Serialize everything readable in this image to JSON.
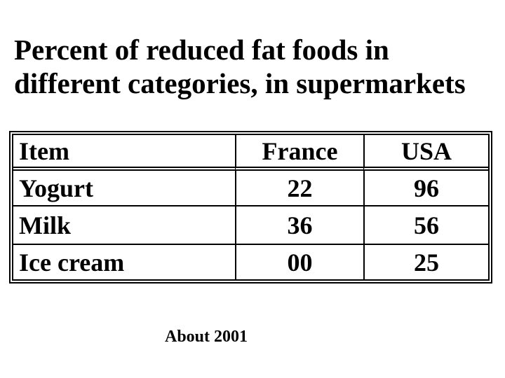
{
  "slide": {
    "title": {
      "line1": "Percent of reduced fat foods in",
      "line2": "different categories, in supermarkets"
    },
    "table": {
      "headers": [
        "Item",
        "France",
        "USA"
      ],
      "rows": [
        {
          "item": "Yogurt",
          "france": "22",
          "usa": "96"
        },
        {
          "item": "Milk",
          "france": "36",
          "usa": "56"
        },
        {
          "item": "Ice cream",
          "france": "00",
          "usa": "25"
        }
      ]
    },
    "footnote": "About 2001",
    "colors": {
      "background": "#ffffff",
      "text": "#000000",
      "table_border": "#000000"
    }
  },
  "chart_data": {
    "type": "table",
    "title": "Percent of reduced fat foods in different categories, in supermarkets",
    "categories": [
      "Yogurt",
      "Milk",
      "Ice cream"
    ],
    "series": [
      {
        "name": "France",
        "values": [
          22,
          36,
          0
        ]
      },
      {
        "name": "USA",
        "values": [
          96,
          56,
          25
        ]
      }
    ],
    "note": "About 2001"
  }
}
